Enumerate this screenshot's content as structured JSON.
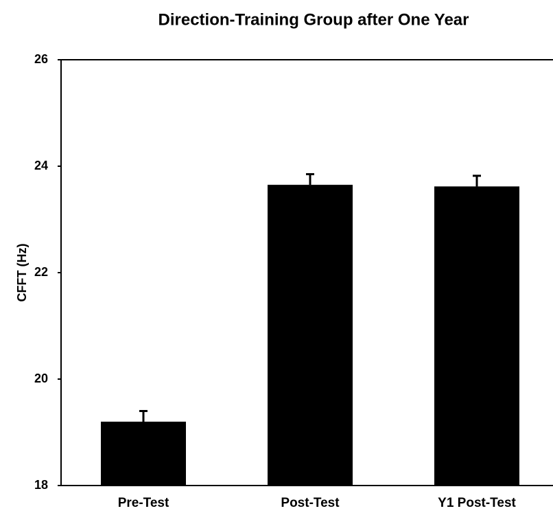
{
  "chart_data": {
    "type": "bar",
    "title": "Direction-Training Group after One Year",
    "y_label": "CFFT (Hz)",
    "categories": [
      "Pre-Test",
      "Post-Test",
      "Y1 Post-Test"
    ],
    "values": [
      19.2,
      23.65,
      23.62
    ],
    "errors": [
      0.2,
      0.2,
      0.2
    ],
    "color": "#000000",
    "ylim": [
      18,
      26
    ],
    "yticks": [
      18,
      20,
      22,
      24,
      26
    ],
    "grid": false
  }
}
